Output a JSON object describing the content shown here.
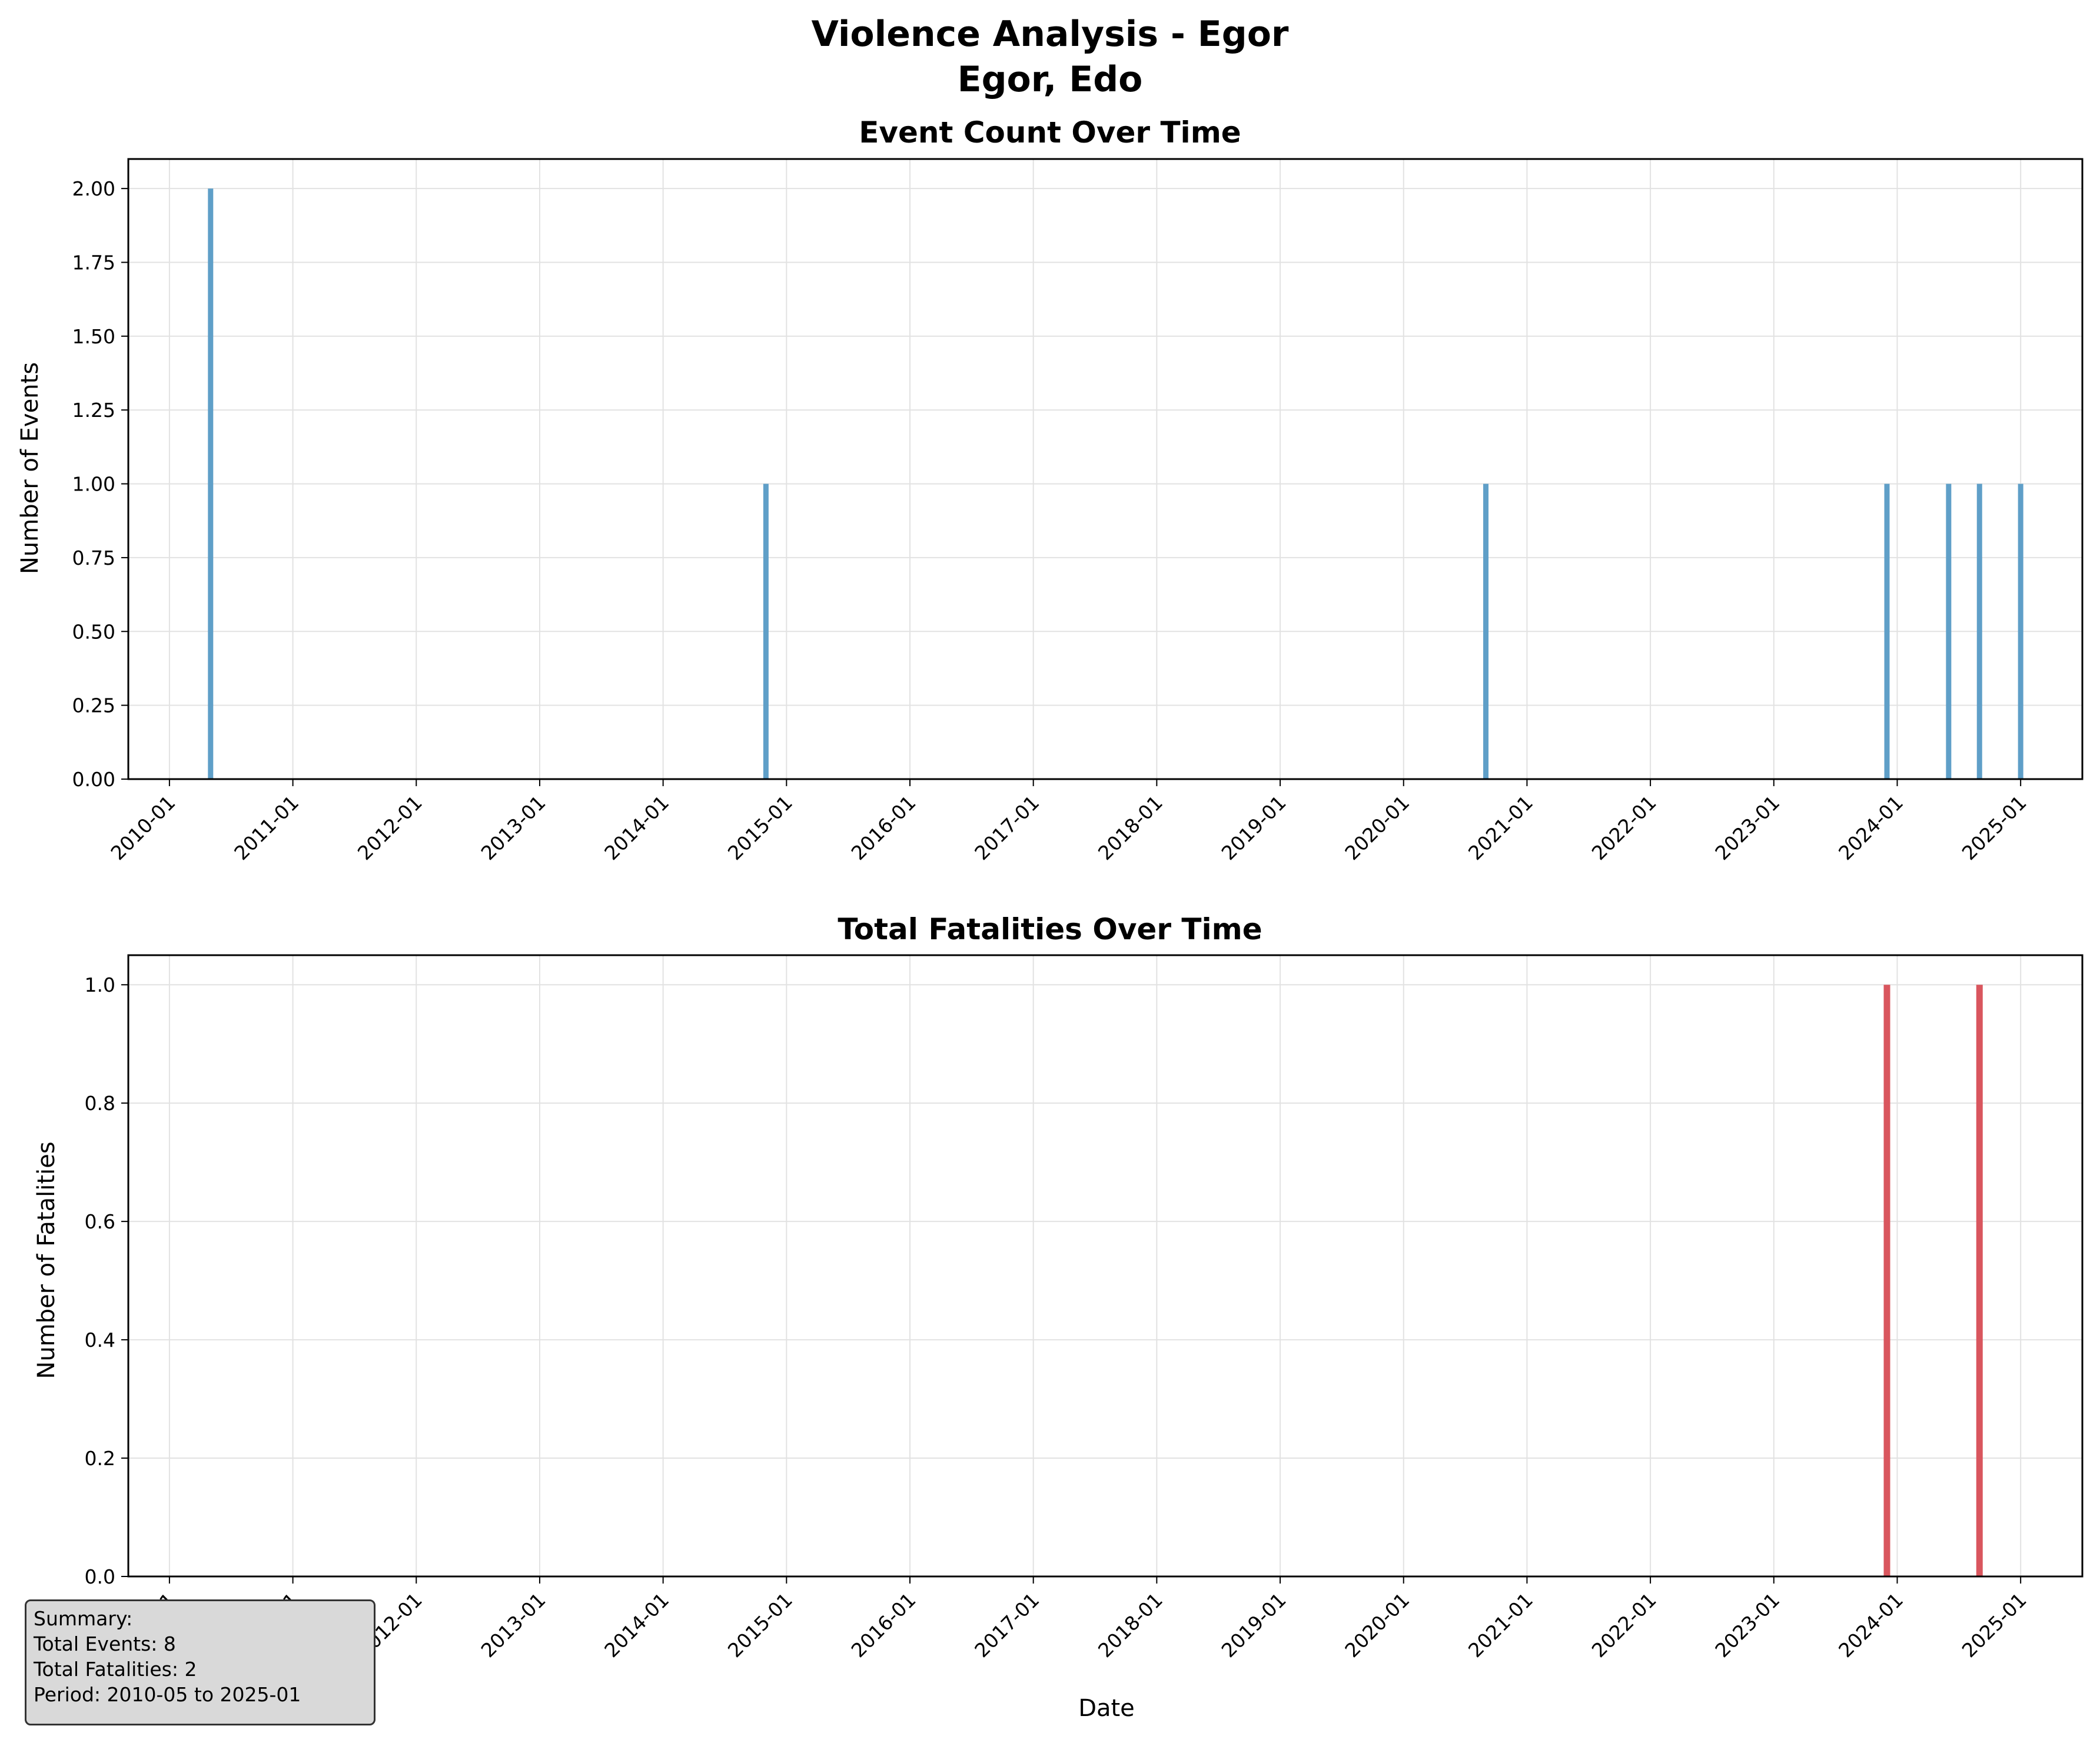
{
  "title_line1": "Violence Analysis - Egor",
  "title_line2": "Egor, Edo",
  "colors": {
    "events": "#5f9fc8",
    "fatalities": "#d9565e",
    "grid": "#e2e2e2"
  },
  "chart_data": [
    {
      "type": "bar",
      "title": "Event Count Over Time",
      "xlabel": "",
      "ylabel": "Number of Events",
      "x_ticks": [
        "2010-01",
        "2011-01",
        "2012-01",
        "2013-01",
        "2014-01",
        "2015-01",
        "2016-01",
        "2017-01",
        "2018-01",
        "2019-01",
        "2020-01",
        "2021-01",
        "2022-01",
        "2023-01",
        "2024-01",
        "2025-01"
      ],
      "y_ticks": [
        "0.00",
        "0.25",
        "0.50",
        "0.75",
        "1.00",
        "1.25",
        "1.50",
        "1.75",
        "2.00"
      ],
      "ylim": [
        0,
        2.1
      ],
      "xlim": [
        "2009-09",
        "2025-07"
      ],
      "grid": true,
      "points": [
        {
          "x": "2010-05",
          "y": 2
        },
        {
          "x": "2014-11",
          "y": 1
        },
        {
          "x": "2020-09",
          "y": 1
        },
        {
          "x": "2023-12",
          "y": 1
        },
        {
          "x": "2024-06",
          "y": 1
        },
        {
          "x": "2024-09",
          "y": 1
        },
        {
          "x": "2025-01",
          "y": 1
        }
      ]
    },
    {
      "type": "bar",
      "title": "Total Fatalities Over Time",
      "xlabel": "Date",
      "ylabel": "Number of Fatalities",
      "x_ticks": [
        "2010-01",
        "2011-01",
        "2012-01",
        "2013-01",
        "2014-01",
        "2015-01",
        "2016-01",
        "2017-01",
        "2018-01",
        "2019-01",
        "2020-01",
        "2021-01",
        "2022-01",
        "2023-01",
        "2024-01",
        "2025-01"
      ],
      "y_ticks": [
        "0.0",
        "0.2",
        "0.4",
        "0.6",
        "0.8",
        "1.0"
      ],
      "ylim": [
        0,
        1.05
      ],
      "xlim": [
        "2009-09",
        "2025-07"
      ],
      "grid": true,
      "points": [
        {
          "x": "2023-12",
          "y": 1
        },
        {
          "x": "2024-09",
          "y": 1
        }
      ]
    }
  ],
  "summary": {
    "heading": "Summary:",
    "events": "Total Events: 8",
    "fatalities": "Total Fatalities: 2",
    "period": "Period: 2010-05 to 2025-01"
  }
}
